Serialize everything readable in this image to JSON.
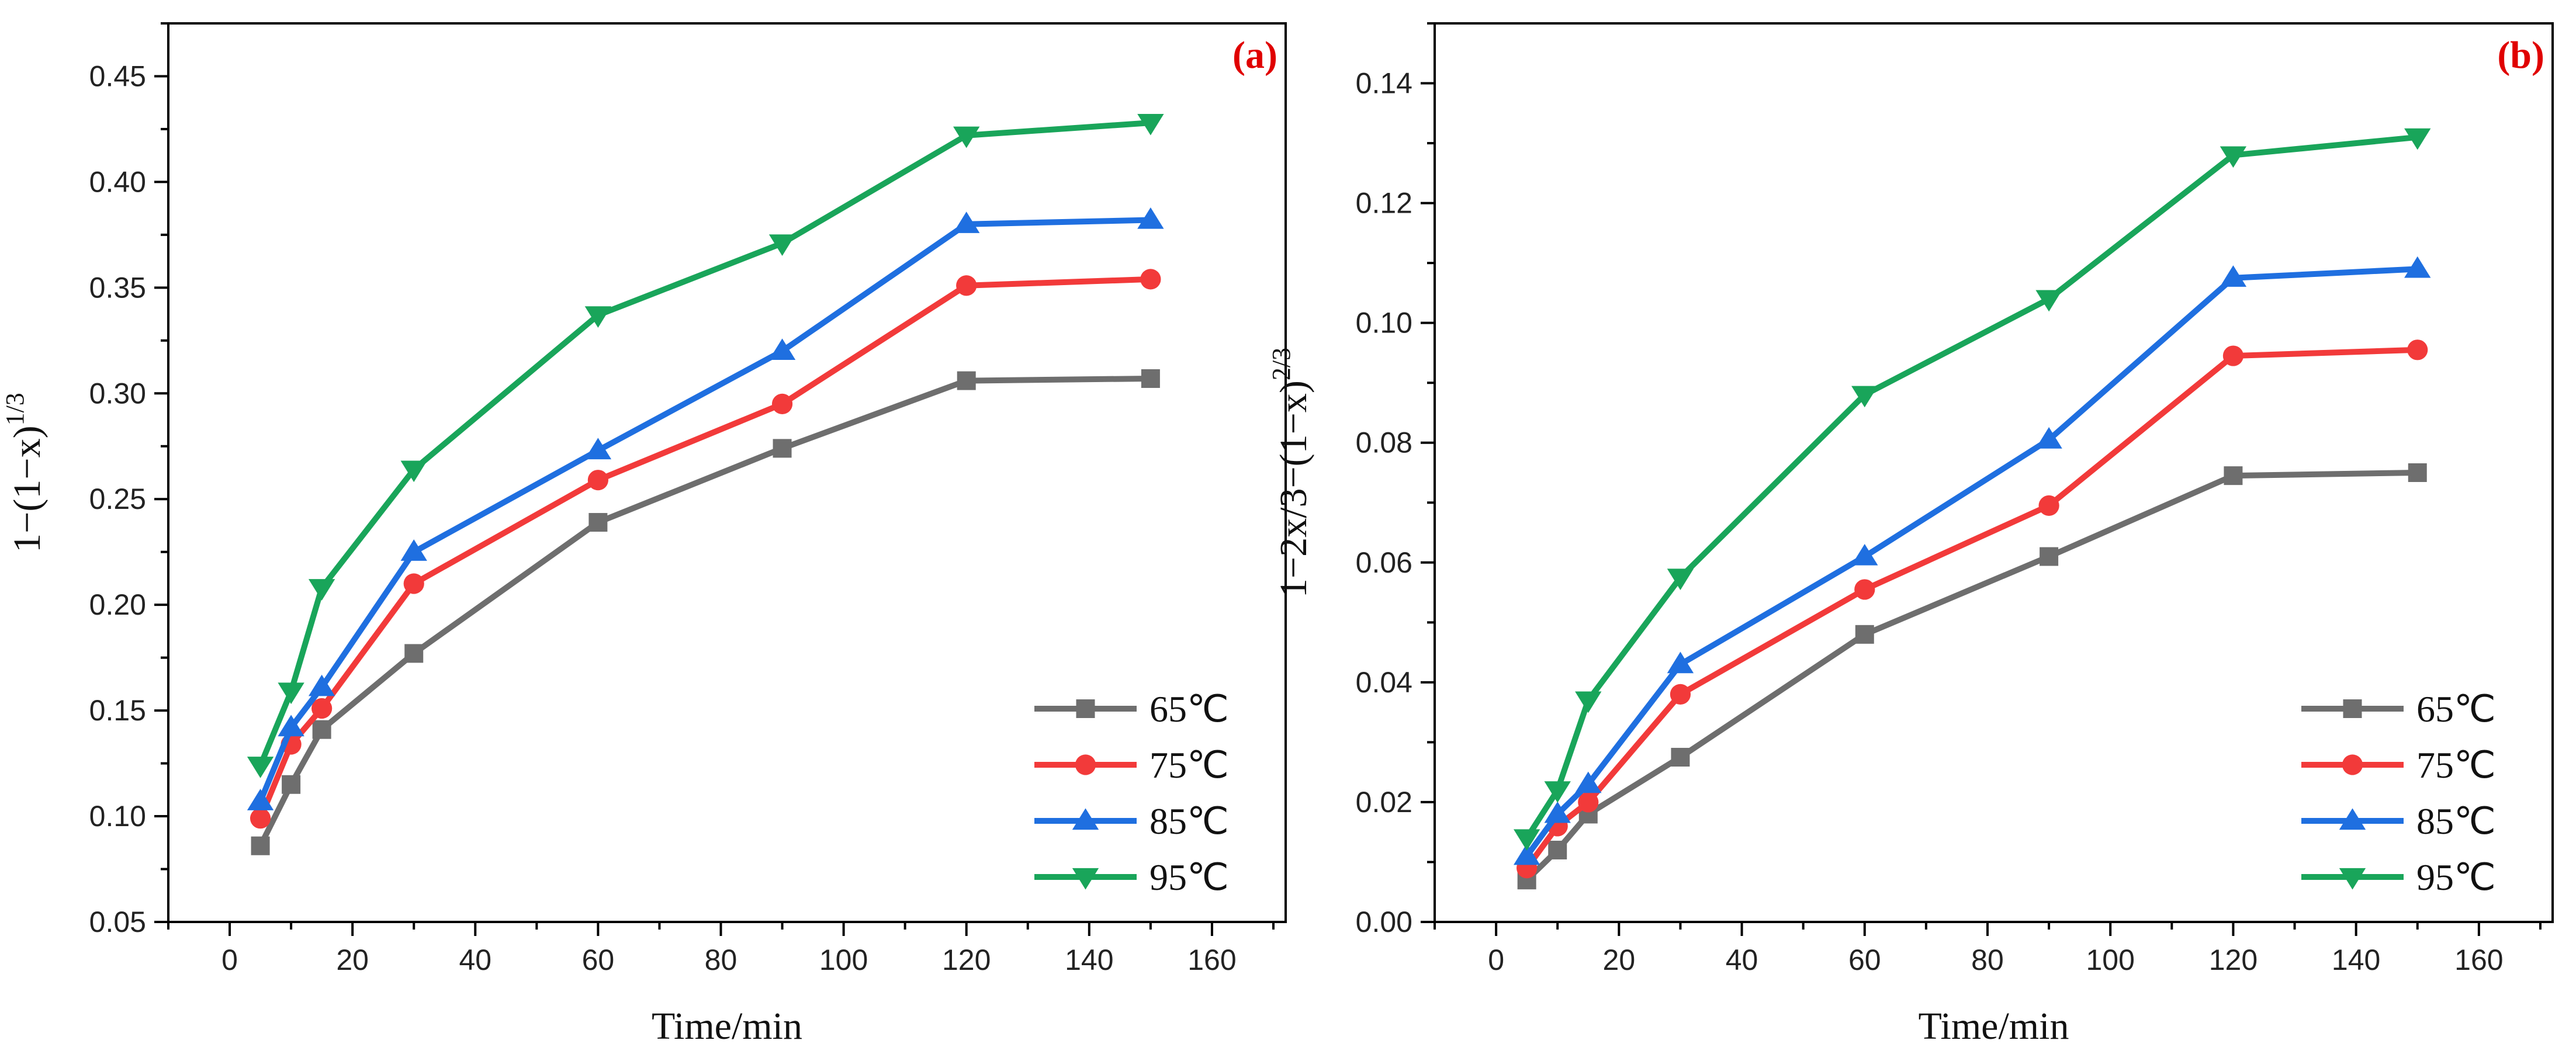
{
  "colors": {
    "65": "#6e6e6e",
    "75": "#f23a3a",
    "85": "#1f6fe0",
    "95": "#19a55a",
    "panel_label": "#e00000",
    "axis": "#000000"
  },
  "chart_data": [
    {
      "type": "line",
      "panel_label": "(a)",
      "xlabel": "Time/min",
      "ylabel_parts": [
        "1−(1−x)",
        "1/3"
      ],
      "xlim": [
        -10,
        172
      ],
      "ylim": [
        0.05,
        0.475
      ],
      "xticks": [
        0,
        20,
        40,
        60,
        80,
        100,
        120,
        140,
        160
      ],
      "yticks": [
        0.05,
        0.1,
        0.15,
        0.2,
        0.25,
        0.3,
        0.35,
        0.4,
        0.45
      ],
      "ytick_labels": [
        "0.05",
        "0.10",
        "0.15",
        "0.20",
        "0.25",
        "0.30",
        "0.35",
        "0.40",
        "0.45"
      ],
      "x": [
        5,
        10,
        15,
        30,
        60,
        90,
        120,
        150
      ],
      "legend": "bottom-right",
      "series": [
        {
          "name": "65℃",
          "marker": "square",
          "color_key": "65",
          "values": [
            0.086,
            0.115,
            0.141,
            0.177,
            0.239,
            0.274,
            0.306,
            0.307
          ]
        },
        {
          "name": "75℃",
          "marker": "circle",
          "color_key": "75",
          "values": [
            0.099,
            0.134,
            0.151,
            0.21,
            0.259,
            0.295,
            0.351,
            0.354
          ]
        },
        {
          "name": "85℃",
          "marker": "triangle-up",
          "color_key": "85",
          "values": [
            0.107,
            0.142,
            0.161,
            0.225,
            0.273,
            0.32,
            0.38,
            0.382
          ]
        },
        {
          "name": "95℃",
          "marker": "triangle-down",
          "color_key": "95",
          "values": [
            0.124,
            0.159,
            0.208,
            0.264,
            0.337,
            0.371,
            0.422,
            0.428
          ]
        }
      ]
    },
    {
      "type": "line",
      "panel_label": "(b)",
      "xlabel": "Time/min",
      "ylabel_parts": [
        "1−2x/3−(1−x)",
        "2/3"
      ],
      "xlim": [
        -10,
        172
      ],
      "ylim": [
        0,
        0.15
      ],
      "xticks": [
        0,
        20,
        40,
        60,
        80,
        100,
        120,
        140,
        160
      ],
      "yticks": [
        0,
        0.02,
        0.04,
        0.06,
        0.08,
        0.1,
        0.12,
        0.14
      ],
      "ytick_labels": [
        "0.00",
        "0.02",
        "0.04",
        "0.06",
        "0.08",
        "0.10",
        "0.12",
        "0.14"
      ],
      "x": [
        5,
        10,
        15,
        30,
        60,
        90,
        120,
        150
      ],
      "legend": "bottom-right",
      "series": [
        {
          "name": "65℃",
          "marker": "square",
          "color_key": "65",
          "values": [
            0.007,
            0.012,
            0.018,
            0.0275,
            0.048,
            0.061,
            0.0745,
            0.075
          ]
        },
        {
          "name": "75℃",
          "marker": "circle",
          "color_key": "75",
          "values": [
            0.009,
            0.016,
            0.02,
            0.038,
            0.0555,
            0.0695,
            0.0945,
            0.0955
          ]
        },
        {
          "name": "85℃",
          "marker": "triangle-up",
          "color_key": "85",
          "values": [
            0.011,
            0.018,
            0.023,
            0.043,
            0.061,
            0.0805,
            0.1075,
            0.109
          ]
        },
        {
          "name": "95℃",
          "marker": "triangle-down",
          "color_key": "95",
          "values": [
            0.014,
            0.022,
            0.037,
            0.0575,
            0.088,
            0.104,
            0.128,
            0.131
          ]
        }
      ]
    }
  ]
}
